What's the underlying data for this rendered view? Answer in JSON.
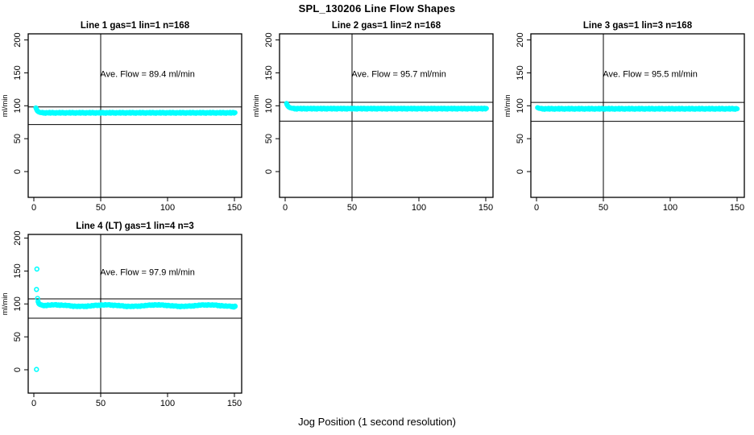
{
  "window": {
    "kind": "r-graphics-plot"
  },
  "chart_data": {
    "type": "scatter",
    "title": "SPL_130206  Line Flow Shapes",
    "xlabel": "Jog Position (1 second resolution)",
    "ylabel": "ml/min",
    "xlim": [
      0,
      150
    ],
    "ylim": [
      0,
      200
    ],
    "xticks": [
      0,
      50,
      100,
      150
    ],
    "yticks": [
      0,
      50,
      100,
      150,
      200
    ],
    "grid": false,
    "legend": "none",
    "colors": {
      "points": "#00FFFF",
      "lines": "#000000",
      "background": "#FFFFFF"
    },
    "point_style": "open-circle",
    "panels": [
      {
        "id": "line1",
        "title": "Line 1 gas=1 lin=1 n=168",
        "annotation": "Ave. Flow =  89.4  ml/min",
        "ave_flow": 89.4,
        "vline_x": 50,
        "hline_values": [
          98.3,
          71.5
        ],
        "points": [
          [
            1.5,
            97.0
          ],
          [
            1.8,
            95.5
          ],
          [
            2.1,
            94.2
          ],
          [
            2.4,
            93.0
          ],
          [
            2.7,
            92.2
          ],
          [
            3.0,
            91.5
          ],
          [
            3.4,
            91.0
          ],
          [
            3.8,
            90.6
          ],
          [
            4.2,
            90.2
          ],
          [
            4.6,
            89.9
          ],
          [
            5.0,
            89.7
          ],
          [
            5.5,
            89.6
          ],
          [
            6.0,
            89.5
          ]
        ],
        "band": {
          "x_start": 6.5,
          "x_end": 150.5,
          "step": 0.75,
          "base": 89.3,
          "jitter": [
            0.8,
            -0.6,
            0.3,
            -0.9,
            0.6,
            0.0,
            -0.4,
            0.9,
            -0.8,
            0.2
          ]
        }
      },
      {
        "id": "line2",
        "title": "Line 2 gas=1 lin=2 n=168",
        "annotation": "Ave. Flow =  95.7  ml/min",
        "ave_flow": 95.7,
        "vline_x": 50,
        "hline_values": [
          105.3,
          76.6
        ],
        "points": [
          [
            1.0,
            103.5
          ],
          [
            1.3,
            102.0
          ],
          [
            1.6,
            100.8
          ],
          [
            2.0,
            99.6
          ],
          [
            2.4,
            98.7
          ],
          [
            2.8,
            98.0
          ],
          [
            3.2,
            97.5
          ],
          [
            3.6,
            97.1
          ],
          [
            4.0,
            96.8
          ],
          [
            4.5,
            96.5
          ],
          [
            5.0,
            96.3
          ],
          [
            5.5,
            96.1
          ],
          [
            6.0,
            96.0
          ]
        ],
        "band": {
          "x_start": 6.5,
          "x_end": 150.5,
          "step": 0.75,
          "base": 95.6,
          "jitter": [
            0.8,
            -0.6,
            0.3,
            -0.9,
            0.6,
            0.0,
            -0.4,
            0.9,
            -0.8,
            0.2
          ]
        }
      },
      {
        "id": "line3",
        "title": "Line 3 gas=1 lin=3 n=168",
        "annotation": "Ave. Flow =  95.5  ml/min",
        "ave_flow": 95.5,
        "vline_x": 50,
        "hline_values": [
          105.1,
          76.4
        ],
        "points": [
          [
            0.8,
            97.2
          ],
          [
            1.2,
            96.8
          ],
          [
            1.6,
            96.4
          ],
          [
            2.0,
            96.1
          ],
          [
            2.6,
            95.9
          ],
          [
            3.2,
            95.7
          ]
        ],
        "band": {
          "x_start": 3.8,
          "x_end": 150.5,
          "step": 0.75,
          "base": 95.4,
          "jitter": [
            0.8,
            -0.6,
            0.3,
            -0.9,
            0.6,
            0.0,
            -0.4,
            0.9,
            -0.8,
            0.2
          ]
        }
      },
      {
        "id": "line4",
        "title": "Line 4 (LT) gas=1 lin=4 n=3",
        "annotation": "Ave. Flow =  97.9  ml/min",
        "ave_flow": 97.9,
        "vline_x": 50,
        "hline_values": [
          107.7,
          78.3
        ],
        "points": [
          [
            2.0,
            0.5
          ],
          [
            2.0,
            122.0
          ],
          [
            2.3,
            153.0
          ],
          [
            2.8,
            108.5
          ],
          [
            3.2,
            103.5
          ],
          [
            3.6,
            101.0
          ],
          [
            4.0,
            100.0
          ],
          [
            4.5,
            99.3
          ],
          [
            5.0,
            98.9
          ],
          [
            5.5,
            98.6
          ],
          [
            6.0,
            98.4
          ],
          [
            148.5,
            95.6
          ],
          [
            149.5,
            95.2
          ],
          [
            150.5,
            96.2
          ]
        ],
        "band": {
          "x_start": 6.5,
          "x_end": 150.5,
          "step": 1.0,
          "base": 97.4,
          "wave": {
            "amp": 1.1,
            "period": 38
          },
          "jitter": [
            0.5,
            -0.4,
            0.2,
            -0.6,
            0.4,
            0.0,
            -0.3,
            0.5,
            -0.2,
            0.3
          ]
        }
      }
    ]
  }
}
